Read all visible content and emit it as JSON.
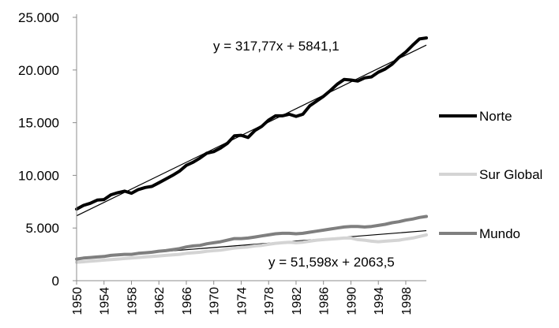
{
  "chart_data": {
    "type": "line",
    "title": "",
    "xlabel": "",
    "ylabel": "",
    "ylim": [
      0,
      25000
    ],
    "xlim": [
      1950,
      2001
    ],
    "grid": false,
    "legend_position": "right",
    "y_ticks": [
      {
        "value": 0,
        "label": "0"
      },
      {
        "value": 5000,
        "label": "5.000"
      },
      {
        "value": 10000,
        "label": "10.000"
      },
      {
        "value": 15000,
        "label": "15.000"
      },
      {
        "value": 20000,
        "label": "20.000"
      },
      {
        "value": 25000,
        "label": "25.000"
      }
    ],
    "x_ticks": [
      {
        "value": 1950,
        "label": "1950"
      },
      {
        "value": 1954,
        "label": "1954"
      },
      {
        "value": 1958,
        "label": "1958"
      },
      {
        "value": 1962,
        "label": "1962"
      },
      {
        "value": 1966,
        "label": "1966"
      },
      {
        "value": 1970,
        "label": "1970"
      },
      {
        "value": 1974,
        "label": "1974"
      },
      {
        "value": 1978,
        "label": "1978"
      },
      {
        "value": 1982,
        "label": "1982"
      },
      {
        "value": 1986,
        "label": "1986"
      },
      {
        "value": 1990,
        "label": "1990"
      },
      {
        "value": 1994,
        "label": "1994"
      },
      {
        "value": 1998,
        "label": "1998"
      }
    ],
    "series": [
      {
        "name": "Norte",
        "color": "#000000",
        "x": [
          1950,
          1951,
          1952,
          1953,
          1954,
          1955,
          1956,
          1957,
          1958,
          1959,
          1960,
          1961,
          1962,
          1963,
          1964,
          1965,
          1966,
          1967,
          1968,
          1969,
          1970,
          1971,
          1972,
          1973,
          1974,
          1975,
          1976,
          1977,
          1978,
          1979,
          1980,
          1981,
          1982,
          1983,
          1984,
          1985,
          1986,
          1987,
          1988,
          1989,
          1990,
          1991,
          1992,
          1993,
          1994,
          1995,
          1996,
          1997,
          1998,
          1999,
          2000,
          2001
        ],
        "values": [
          6800,
          7150,
          7350,
          7650,
          7700,
          8150,
          8350,
          8500,
          8300,
          8650,
          8850,
          8950,
          9300,
          9650,
          10000,
          10400,
          10950,
          11250,
          11650,
          12100,
          12250,
          12600,
          13050,
          13750,
          13800,
          13600,
          14250,
          14650,
          15250,
          15650,
          15650,
          15800,
          15600,
          15800,
          16600,
          17050,
          17500,
          18050,
          18650,
          19100,
          19050,
          18950,
          19250,
          19350,
          19800,
          20100,
          20550,
          21200,
          21700,
          22350,
          22950,
          23050
        ]
      },
      {
        "name": "Sur Global",
        "color": "#d4d4d4",
        "x": [
          1950,
          1951,
          1952,
          1953,
          1954,
          1955,
          1956,
          1957,
          1958,
          1959,
          1960,
          1961,
          1962,
          1963,
          1964,
          1965,
          1966,
          1967,
          1968,
          1969,
          1970,
          1971,
          1972,
          1973,
          1974,
          1975,
          1976,
          1977,
          1978,
          1979,
          1980,
          1981,
          1982,
          1983,
          1984,
          1985,
          1986,
          1987,
          1988,
          1989,
          1990,
          1991,
          1992,
          1993,
          1994,
          1995,
          1996,
          1997,
          1998,
          1999,
          2000,
          2001
        ],
        "values": [
          1750,
          1800,
          1850,
          1900,
          1950,
          2000,
          2050,
          2100,
          2150,
          2200,
          2250,
          2300,
          2350,
          2400,
          2450,
          2500,
          2600,
          2650,
          2700,
          2800,
          2850,
          2900,
          3000,
          3100,
          3150,
          3200,
          3300,
          3350,
          3450,
          3550,
          3600,
          3650,
          3600,
          3650,
          3750,
          3850,
          3900,
          3950,
          4000,
          4050,
          4050,
          3900,
          3850,
          3750,
          3700,
          3750,
          3800,
          3850,
          3950,
          4050,
          4200,
          4350
        ]
      },
      {
        "name": "Mundo",
        "color": "#7f7f7f",
        "x": [
          1950,
          1951,
          1952,
          1953,
          1954,
          1955,
          1956,
          1957,
          1958,
          1959,
          1960,
          1961,
          1962,
          1963,
          1964,
          1965,
          1966,
          1967,
          1968,
          1969,
          1970,
          1971,
          1972,
          1973,
          1974,
          1975,
          1976,
          1977,
          1978,
          1979,
          1980,
          1981,
          1982,
          1983,
          1984,
          1985,
          1986,
          1987,
          1988,
          1989,
          1990,
          1991,
          1992,
          1993,
          1994,
          1995,
          1996,
          1997,
          1998,
          1999,
          2000,
          2001
        ],
        "values": [
          2050,
          2150,
          2200,
          2250,
          2300,
          2400,
          2450,
          2500,
          2500,
          2600,
          2650,
          2700,
          2800,
          2850,
          2950,
          3050,
          3200,
          3300,
          3350,
          3500,
          3600,
          3700,
          3850,
          4000,
          4000,
          4050,
          4150,
          4250,
          4350,
          4450,
          4500,
          4500,
          4450,
          4500,
          4600,
          4700,
          4800,
          4900,
          5000,
          5100,
          5150,
          5150,
          5100,
          5150,
          5250,
          5350,
          5500,
          5600,
          5750,
          5850,
          6000,
          6100
        ]
      }
    ],
    "trendlines": [
      {
        "series": "Norte",
        "slope": 317.77,
        "intercept": 5841.1,
        "color": "#000000",
        "label": "y = 317,77x + 5841,1"
      },
      {
        "series": "Mundo",
        "slope": 51.598,
        "intercept": 2063.5,
        "color": "#000000",
        "label": "y = 51,598x + 2063,5"
      }
    ]
  }
}
